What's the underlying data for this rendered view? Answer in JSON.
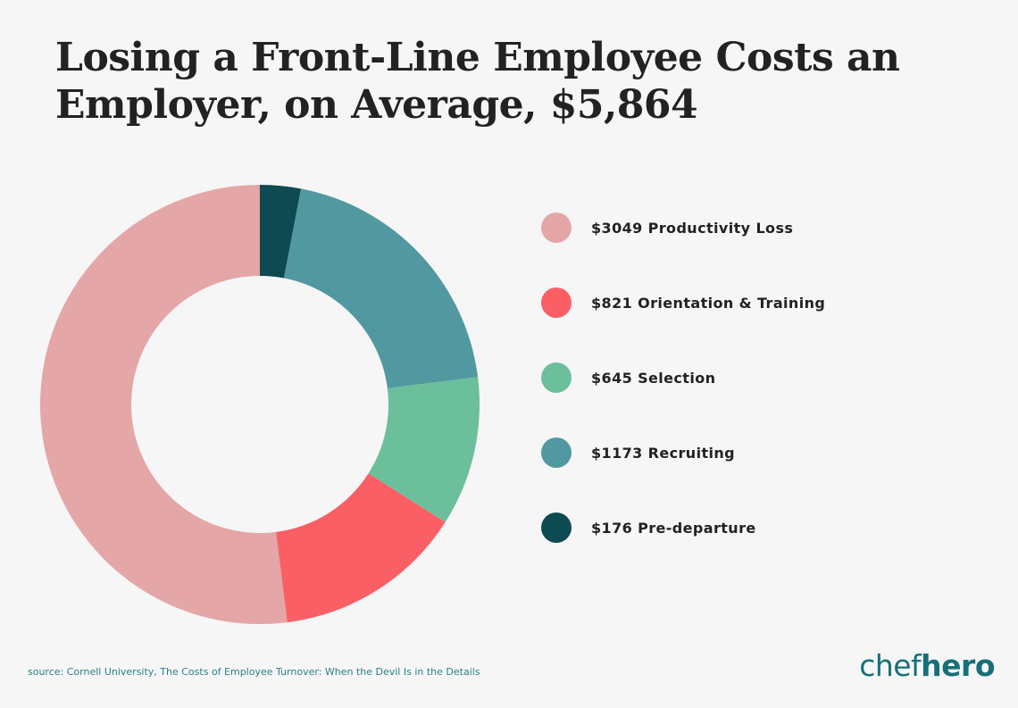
{
  "title": {
    "line1": "Losing a Front-Line Employee Costs an",
    "line2": "Employer, on Average, $5,864"
  },
  "chart_data": {
    "type": "pie",
    "variant": "donut",
    "title": "Losing a Front-Line Employee Costs an Employer, on Average, $5,864",
    "legend_position": "right",
    "series": [
      {
        "label": "$3049 Productivity Loss",
        "value": 3049,
        "color": "#e4a6a6"
      },
      {
        "label": "$821 Orientation & Training",
        "value": 821,
        "color": "#f95f65"
      },
      {
        "label": "$645 Selection",
        "value": 645,
        "color": "#6bbf9b"
      },
      {
        "label": "$1173 Recruiting",
        "value": 1173,
        "color": "#5298a0"
      },
      {
        "label": "$176 Pre-departure",
        "value": 176,
        "color": "#0e4a52"
      }
    ],
    "draw_order_clockwise_from_top": [
      4,
      3,
      2,
      1,
      0
    ]
  },
  "footer": {
    "source": "source: Cornell University, The Costs of Employee Turnover: When the Devil Is in the Details",
    "brand_part1": "chef",
    "brand_part2": "hero"
  }
}
